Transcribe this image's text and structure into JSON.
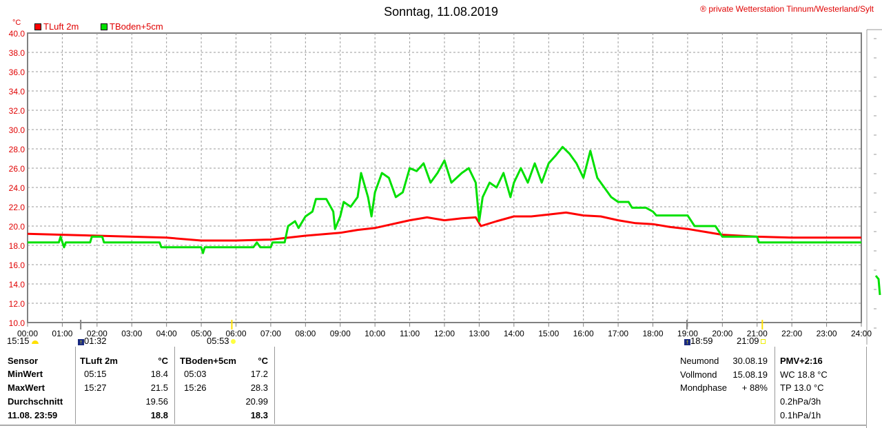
{
  "title": "Sonntag, 11.08.2019",
  "copyright": "® private Wetterstation Tinnum/Westerland/Sylt",
  "unit": "°C",
  "events": [
    {
      "time": "15:15",
      "icon": "moonset-icon",
      "hour": null
    },
    {
      "time": "01:32",
      "icon": "moonrise-icon",
      "hour": 1.53
    },
    {
      "time": "05:53",
      "icon": "sunrise-icon",
      "hour": 5.88
    },
    {
      "time": "18:59",
      "icon": "moonrise-icon",
      "hour": 18.98
    },
    {
      "time": "21:09",
      "icon": "sunset-icon",
      "hour": 21.15
    }
  ],
  "table": {
    "col0": [
      "Sensor",
      "MinWert",
      "MaxWert",
      "Durchschnitt",
      "11.08. 23:59"
    ],
    "luft": {
      "header": "TLuft 2m",
      "unit": "°C",
      "min_time": "05:15",
      "min": "18.4",
      "max_time": "15:27",
      "max": "21.5",
      "avg": "19.56",
      "current": "18.8"
    },
    "boden": {
      "header": "TBoden+5cm",
      "unit": "°C",
      "min_time": "05:03",
      "min": "17.2",
      "max_time": "15:26",
      "max": "28.3",
      "avg": "20.99",
      "current": "18.3"
    }
  },
  "moon": {
    "rows": [
      [
        "Neumond",
        "30.08.19"
      ],
      [
        "Vollmond",
        "15.08.19"
      ],
      [
        "Mondphase",
        "+ 88%"
      ]
    ]
  },
  "extra": [
    "PMV+2:16",
    "WC 18.8 °C",
    "TP 13.0 °C",
    "0.2hPa/3h",
    "0.1hPa/1h"
  ],
  "chart_data": {
    "type": "line",
    "title": "Sonntag, 11.08.2019",
    "ylabel": "°C",
    "ylim": [
      10,
      40
    ],
    "xlim": [
      0,
      24
    ],
    "grid": true,
    "legend": "top-left",
    "yticks": [
      "10.0",
      "12.0",
      "14.0",
      "16.0",
      "18.0",
      "20.0",
      "22.0",
      "24.0",
      "26.0",
      "28.0",
      "30.0",
      "32.0",
      "34.0",
      "36.0",
      "38.0",
      "40.0"
    ],
    "xticks": [
      "00:00",
      "01:00",
      "02:00",
      "03:00",
      "04:00",
      "05:00",
      "06:00",
      "07:00",
      "08:00",
      "09:00",
      "10:00",
      "11:00",
      "12:00",
      "13:00",
      "14:00",
      "15:00",
      "16:00",
      "17:00",
      "18:00",
      "19:00",
      "20:00",
      "21:00",
      "22:00",
      "23:00",
      "24:00"
    ],
    "series": [
      {
        "name": "TLuft 2m",
        "color": "#ff0000",
        "points": [
          [
            0,
            19.2
          ],
          [
            1,
            19.1
          ],
          [
            2,
            19.0
          ],
          [
            3,
            18.9
          ],
          [
            4,
            18.8
          ],
          [
            5,
            18.5
          ],
          [
            6,
            18.5
          ],
          [
            7,
            18.6
          ],
          [
            8,
            19.0
          ],
          [
            9,
            19.3
          ],
          [
            9.5,
            19.6
          ],
          [
            10,
            19.8
          ],
          [
            10.5,
            20.2
          ],
          [
            11,
            20.6
          ],
          [
            11.5,
            20.9
          ],
          [
            12,
            20.6
          ],
          [
            12.5,
            20.8
          ],
          [
            12.9,
            20.9
          ],
          [
            13.05,
            20.0
          ],
          [
            13.5,
            20.5
          ],
          [
            14,
            21.0
          ],
          [
            14.5,
            21.0
          ],
          [
            15,
            21.2
          ],
          [
            15.5,
            21.4
          ],
          [
            16,
            21.1
          ],
          [
            16.5,
            21.0
          ],
          [
            17,
            20.6
          ],
          [
            17.5,
            20.3
          ],
          [
            18,
            20.2
          ],
          [
            18.5,
            19.9
          ],
          [
            19,
            19.7
          ],
          [
            19.5,
            19.4
          ],
          [
            20,
            19.1
          ],
          [
            21,
            18.9
          ],
          [
            22,
            18.8
          ],
          [
            24,
            18.8
          ]
        ]
      },
      {
        "name": "TBoden+5cm",
        "color": "#00e000",
        "points": [
          [
            0,
            18.3
          ],
          [
            0.9,
            18.3
          ],
          [
            0.95,
            18.9
          ],
          [
            1.05,
            17.8
          ],
          [
            1.1,
            18.3
          ],
          [
            1.8,
            18.3
          ],
          [
            1.85,
            18.9
          ],
          [
            2.15,
            18.9
          ],
          [
            2.2,
            18.3
          ],
          [
            3.8,
            18.3
          ],
          [
            3.85,
            17.8
          ],
          [
            5.0,
            17.8
          ],
          [
            5.05,
            17.2
          ],
          [
            5.1,
            17.8
          ],
          [
            6.5,
            17.8
          ],
          [
            6.6,
            18.3
          ],
          [
            6.7,
            17.8
          ],
          [
            7.0,
            17.8
          ],
          [
            7.05,
            18.3
          ],
          [
            7.4,
            18.3
          ],
          [
            7.5,
            20.0
          ],
          [
            7.7,
            20.5
          ],
          [
            7.8,
            19.8
          ],
          [
            8.0,
            21.0
          ],
          [
            8.2,
            21.5
          ],
          [
            8.3,
            22.8
          ],
          [
            8.6,
            22.8
          ],
          [
            8.8,
            21.5
          ],
          [
            8.85,
            19.7
          ],
          [
            9.0,
            21.0
          ],
          [
            9.1,
            22.5
          ],
          [
            9.3,
            22.0
          ],
          [
            9.5,
            23.0
          ],
          [
            9.6,
            25.5
          ],
          [
            9.8,
            23.0
          ],
          [
            9.9,
            21.0
          ],
          [
            10.0,
            23.5
          ],
          [
            10.2,
            25.5
          ],
          [
            10.4,
            25.0
          ],
          [
            10.5,
            24.0
          ],
          [
            10.6,
            23.0
          ],
          [
            10.8,
            23.5
          ],
          [
            11.0,
            26.0
          ],
          [
            11.2,
            25.7
          ],
          [
            11.4,
            26.5
          ],
          [
            11.6,
            24.5
          ],
          [
            11.8,
            25.5
          ],
          [
            12.0,
            26.8
          ],
          [
            12.2,
            24.5
          ],
          [
            12.5,
            25.5
          ],
          [
            12.7,
            26.0
          ],
          [
            12.9,
            24.5
          ],
          [
            13.0,
            20.5
          ],
          [
            13.1,
            23.0
          ],
          [
            13.3,
            24.5
          ],
          [
            13.5,
            24.0
          ],
          [
            13.7,
            25.5
          ],
          [
            13.9,
            23.0
          ],
          [
            14.0,
            24.5
          ],
          [
            14.2,
            26.0
          ],
          [
            14.4,
            24.5
          ],
          [
            14.6,
            26.5
          ],
          [
            14.8,
            24.5
          ],
          [
            15.0,
            26.5
          ],
          [
            15.2,
            27.3
          ],
          [
            15.4,
            28.2
          ],
          [
            15.6,
            27.5
          ],
          [
            15.8,
            26.5
          ],
          [
            16.0,
            25.0
          ],
          [
            16.2,
            27.8
          ],
          [
            16.4,
            25.0
          ],
          [
            16.6,
            24.0
          ],
          [
            16.8,
            23.0
          ],
          [
            17.0,
            22.5
          ],
          [
            17.3,
            22.5
          ],
          [
            17.4,
            21.9
          ],
          [
            17.8,
            21.9
          ],
          [
            18.0,
            21.5
          ],
          [
            18.1,
            21.1
          ],
          [
            19.0,
            21.1
          ],
          [
            19.2,
            20.0
          ],
          [
            19.8,
            20.0
          ],
          [
            20.0,
            18.9
          ],
          [
            21.0,
            18.9
          ],
          [
            21.05,
            18.3
          ],
          [
            24,
            18.3
          ]
        ]
      }
    ]
  }
}
